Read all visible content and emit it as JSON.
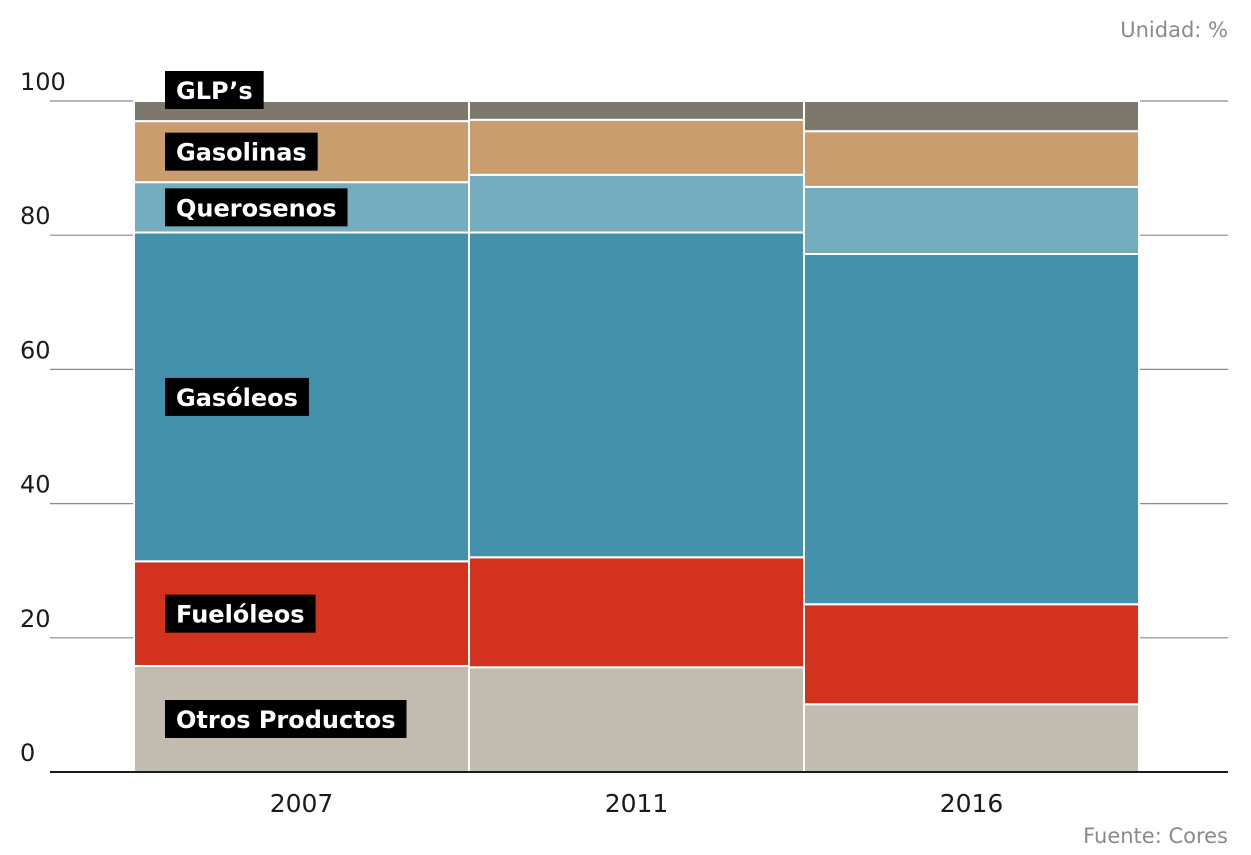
{
  "unit_label": "Unidad: %",
  "source_label": "Fuente: Cores",
  "chart_data": {
    "type": "bar",
    "stacked": true,
    "categories": [
      "2007",
      "2011",
      "2016"
    ],
    "ylim": [
      0,
      100
    ],
    "yticks": [
      0,
      20,
      40,
      60,
      80,
      100
    ],
    "grid": true,
    "series": [
      {
        "name": "Otros Productos",
        "color": "#c2bbb0",
        "values": [
          15.8,
          15.6,
          10.1
        ]
      },
      {
        "name": "Fuelóleos",
        "color": "#d3321e",
        "values": [
          15.6,
          16.4,
          14.9
        ]
      },
      {
        "name": "Gasóleos",
        "color": "#4391ab",
        "values": [
          49.0,
          48.4,
          52.2
        ]
      },
      {
        "name": "Querosenos",
        "color": "#74adbd",
        "values": [
          7.5,
          8.6,
          10.0
        ]
      },
      {
        "name": "Gasolinas",
        "color": "#c99d6d",
        "values": [
          9.1,
          8.2,
          8.3
        ]
      },
      {
        "name": "GLP’s",
        "color": "#7c786b",
        "values": [
          3.0,
          2.8,
          4.5
        ]
      }
    ]
  }
}
